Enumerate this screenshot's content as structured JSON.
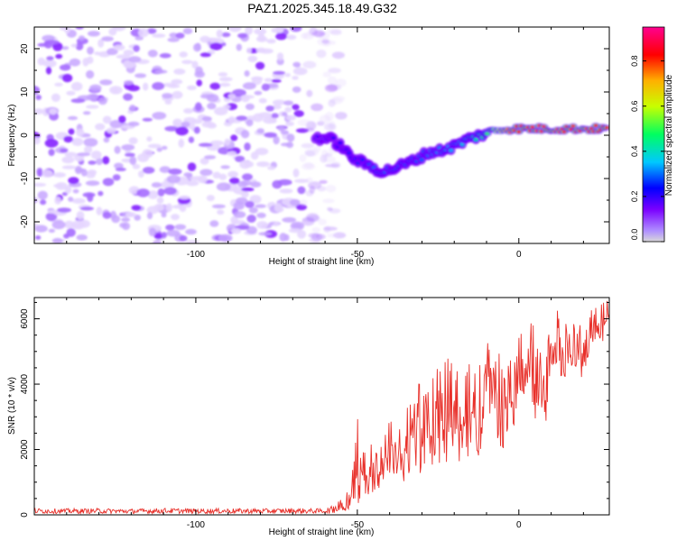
{
  "figure": {
    "title": "PAZ1.2025.345.18.49.G32"
  },
  "chart_data": [
    {
      "type": "heatmap",
      "xlabel": "Height of straight line (km)",
      "ylabel": "Frequency (Hz)",
      "xlim": [
        -150,
        28
      ],
      "ylim": [
        -25,
        25
      ],
      "xticks": [
        -100,
        -50,
        0
      ],
      "yticks": [
        -20,
        -10,
        0,
        10,
        20
      ],
      "colorbar": {
        "label": "Normalized spectral amplitude",
        "ticks": [
          "0.0",
          "0.2",
          "0.4",
          "0.6",
          "0.8"
        ],
        "tick_values": [
          0,
          0.2,
          0.4,
          0.6,
          0.8
        ],
        "range": [
          0,
          0.95
        ],
        "colors": [
          "#d8d8d8",
          "#7a00ff",
          "#0000ff",
          "#00c8ff",
          "#00ff60",
          "#c8ff00",
          "#ffb000",
          "#ff0000",
          "#ff0090"
        ]
      },
      "noise_region_x": [
        -150,
        -55
      ],
      "signal_trace": {
        "x": [
          -63,
          -58,
          -55,
          -52,
          -48,
          -45,
          -42,
          -38,
          -33,
          -28,
          -24,
          -20,
          -16,
          -12,
          -8,
          -4,
          0,
          5,
          10,
          15,
          20,
          25,
          28
        ],
        "frequency": [
          -0.5,
          -1,
          -2.5,
          -5,
          -6.5,
          -7.5,
          -8.5,
          -7.5,
          -6,
          -4,
          -3.5,
          -2.5,
          -1,
          0,
          1,
          1.5,
          1.5,
          1.5,
          1.5,
          1.5,
          1.5,
          1.5,
          1.5
        ],
        "amplitude": [
          0.18,
          0.2,
          0.22,
          0.25,
          0.25,
          0.3,
          0.3,
          0.28,
          0.28,
          0.3,
          0.32,
          0.35,
          0.4,
          0.45,
          0.55,
          0.75,
          0.85,
          0.9,
          0.9,
          0.88,
          0.9,
          0.85,
          0.85
        ]
      }
    },
    {
      "type": "line",
      "xlabel": "Height of straight line (km)",
      "ylabel": "SNR (10 * v/v)",
      "xlim": [
        -150,
        28
      ],
      "ylim": [
        0,
        6650
      ],
      "xticks": [
        -100,
        -50,
        0
      ],
      "yticks": [
        0,
        2000,
        4000,
        6000
      ],
      "series": [
        {
          "name": "SNR",
          "color": "#e8302a",
          "x": [
            -150,
            -140,
            -130,
            -120,
            -110,
            -100,
            -90,
            -80,
            -70,
            -60,
            -57,
            -55,
            -52,
            -50,
            -47,
            -45,
            -42,
            -40,
            -37,
            -35,
            -32,
            -30,
            -27,
            -25,
            -22,
            -20,
            -17,
            -15,
            -12,
            -10,
            -7,
            -5,
            -2,
            0,
            3,
            5,
            8,
            10,
            13,
            15,
            18,
            20,
            23,
            25,
            28
          ],
          "envelope_upper": [
            200,
            190,
            200,
            180,
            210,
            190,
            200,
            190,
            200,
            190,
            300,
            500,
            900,
            3300,
            1800,
            2400,
            2600,
            3000,
            2800,
            3700,
            3400,
            4700,
            4200,
            4600,
            4900,
            4800,
            4300,
            5000,
            4700,
            5400,
            5600,
            4600,
            5000,
            5800,
            6400,
            6000,
            4300,
            6500,
            6200,
            5800,
            6100,
            5900,
            6400,
            6500,
            6650
          ],
          "envelope_lower": [
            40,
            40,
            40,
            40,
            40,
            40,
            40,
            40,
            40,
            40,
            60,
            100,
            150,
            300,
            500,
            700,
            800,
            1000,
            900,
            700,
            1100,
            1300,
            900,
            1200,
            1600,
            1400,
            1700,
            1800,
            1600,
            2600,
            2300,
            1800,
            2400,
            3500,
            3300,
            2700,
            2700,
            3200,
            3600,
            4200,
            4400,
            4000,
            5000,
            5200,
            5500
          ]
        }
      ]
    }
  ]
}
